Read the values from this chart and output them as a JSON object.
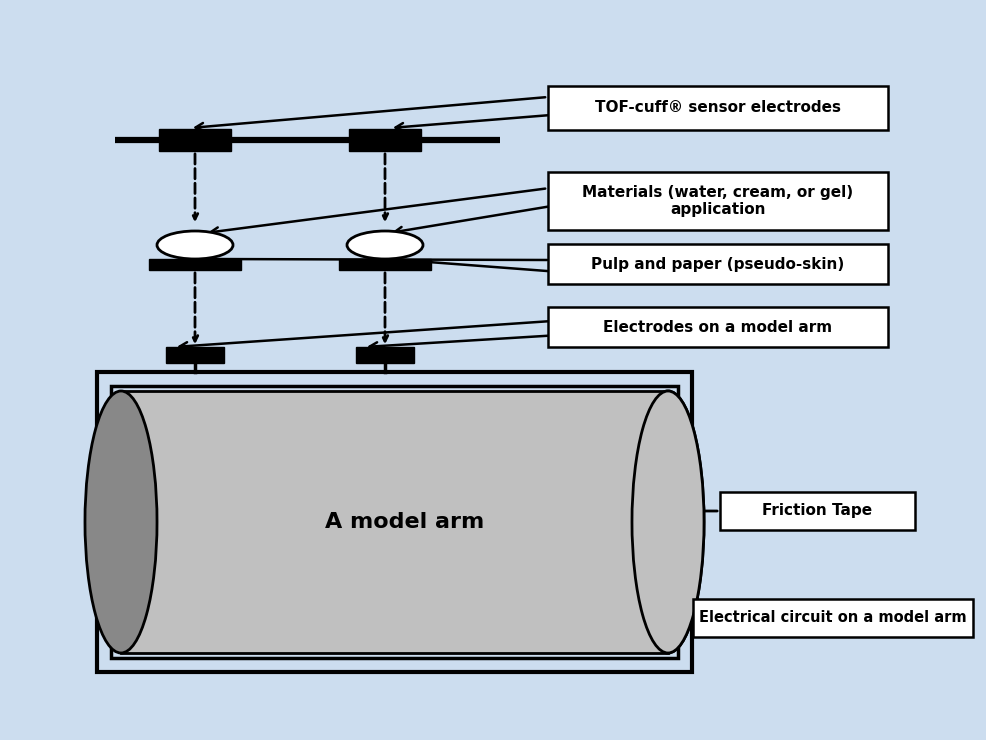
{
  "bg_color": "#ccddef",
  "black": "#000000",
  "white": "#ffffff",
  "gray": "#aaaaaa",
  "dark_gray": "#888888",
  "light_gray": "#c0c0c0",
  "box_fill": "#ddeeff",
  "figsize": [
    9.86,
    7.4
  ],
  "dpi": 100,
  "labels": {
    "tof": "TOF-cuff® sensor electrodes",
    "materials": "Materials (water, cream, or gel)\napplication",
    "pulp": "Pulp and paper (pseudo-skin)",
    "electrodes": "Electrodes on a model arm",
    "friction": "Friction Tape",
    "electrical": "Electrical circuit on a model arm",
    "model_arm": "A model arm"
  }
}
